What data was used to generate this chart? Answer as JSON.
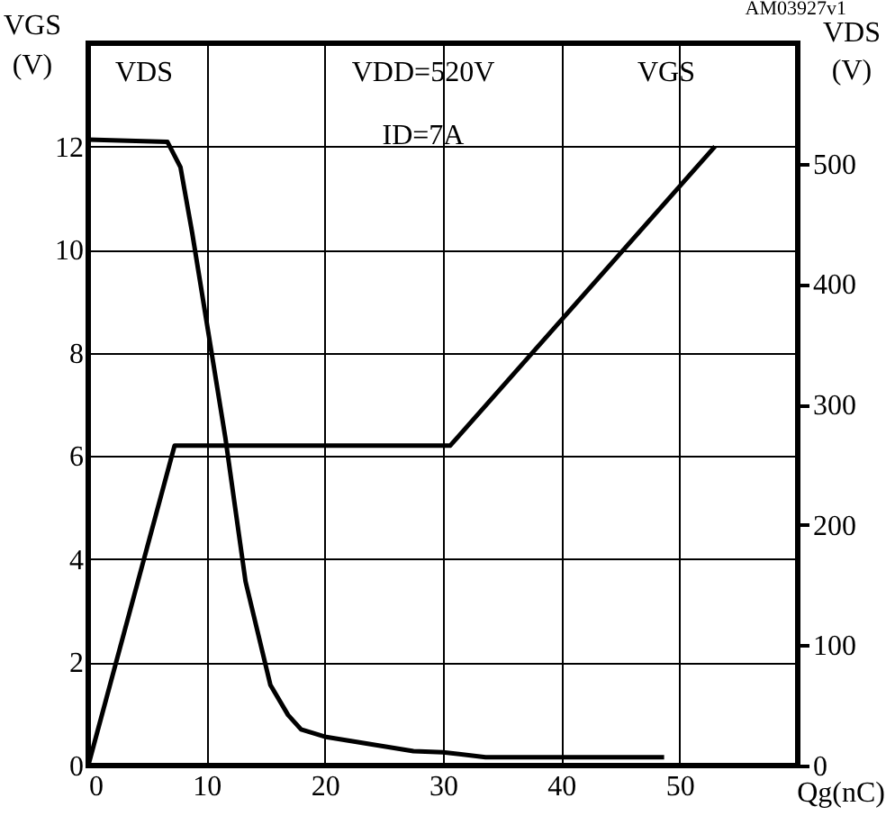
{
  "chart_data": {
    "type": "line",
    "xlabel": "Qg(nC)",
    "ylabel": "VGS (V)",
    "y2label": "VDS (V)",
    "annotations": [
      "VDD=520V",
      "ID=7A",
      "AM03927v1"
    ],
    "xlim": [
      0,
      60
    ],
    "xticks": [
      0,
      10,
      20,
      30,
      40,
      50
    ],
    "ylim": [
      0,
      14
    ],
    "yticks": [
      0,
      2,
      4,
      6,
      8,
      10,
      12
    ],
    "y2lim": [
      0,
      600
    ],
    "y2ticks": [
      0,
      100,
      200,
      300,
      400,
      500
    ],
    "grid": true,
    "marker": "none",
    "line_style": "solid",
    "series": [
      {
        "name": "VDS",
        "color": "#000000",
        "axis": "y2",
        "x": [
          0,
          6.7,
          7.8,
          8.8,
          11.6,
          13.3,
          15.4,
          16.9,
          18,
          20,
          27.5,
          30,
          33.6,
          48.7
        ],
        "values": [
          520,
          518,
          497,
          442,
          272,
          153,
          67,
          42,
          30,
          24,
          12,
          11,
          7,
          7
        ]
      },
      {
        "name": "VGS",
        "color": "#000000",
        "x": [
          0,
          7.3,
          30.6,
          53
        ],
        "values": [
          0,
          6.2,
          6.2,
          12
        ]
      }
    ]
  }
}
